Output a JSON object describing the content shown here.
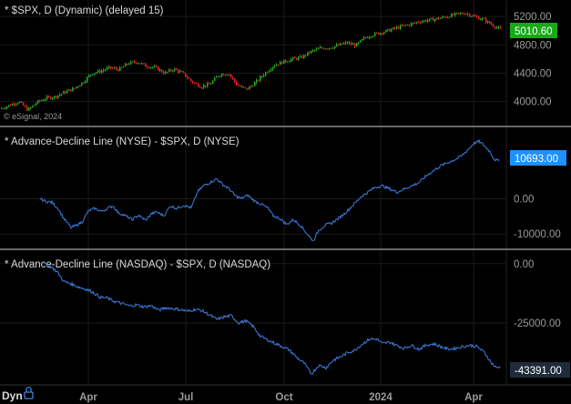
{
  "bottom_bar": {
    "mode_label": "Dyn",
    "lock_icon": "lock-icon"
  },
  "watermark": "© eSignal, 2024",
  "colors": {
    "background": "#000000",
    "divider": "#8a8a8a",
    "grid": "#1a1a1a",
    "candle_up": "#1fa81f",
    "candle_down": "#e02020",
    "line_blue": "#3d7fe0",
    "badge_green": "#18a818",
    "badge_blue": "#1e90ff",
    "badge_dark": "#1f2b3a"
  },
  "chart_data": [
    {
      "type": "candlestick",
      "title": "* $SPX, D (Dynamic) (delayed 15)",
      "ylim": [
        3700,
        5330
      ],
      "yticks": [
        "5200.00",
        "4800.00",
        "4400.00",
        "4000.00"
      ],
      "ytick_values": [
        5200,
        4800,
        4400,
        4000
      ],
      "last_value_label": "5010.60",
      "last_value": 5010.6,
      "anchors": [
        [
          0,
          3900
        ],
        [
          10,
          3950
        ],
        [
          20,
          4000
        ],
        [
          30,
          3880
        ],
        [
          40,
          3990
        ],
        [
          50,
          4050
        ],
        [
          60,
          4070
        ],
        [
          70,
          4130
        ],
        [
          80,
          4180
        ],
        [
          90,
          4270
        ],
        [
          100,
          4400
        ],
        [
          110,
          4430
        ],
        [
          120,
          4480
        ],
        [
          130,
          4450
        ],
        [
          140,
          4540
        ],
        [
          150,
          4560
        ],
        [
          160,
          4500
        ],
        [
          170,
          4480
        ],
        [
          180,
          4400
        ],
        [
          190,
          4460
        ],
        [
          200,
          4400
        ],
        [
          210,
          4280
        ],
        [
          220,
          4210
        ],
        [
          230,
          4250
        ],
        [
          240,
          4380
        ],
        [
          250,
          4400
        ],
        [
          260,
          4230
        ],
        [
          270,
          4170
        ],
        [
          280,
          4270
        ],
        [
          290,
          4400
        ],
        [
          300,
          4510
        ],
        [
          310,
          4560
        ],
        [
          320,
          4600
        ],
        [
          330,
          4620
        ],
        [
          340,
          4700
        ],
        [
          350,
          4750
        ],
        [
          360,
          4760
        ],
        [
          370,
          4790
        ],
        [
          380,
          4830
        ],
        [
          390,
          4790
        ],
        [
          400,
          4900
        ],
        [
          410,
          4950
        ],
        [
          420,
          4980
        ],
        [
          430,
          5020
        ],
        [
          440,
          5060
        ],
        [
          450,
          5090
        ],
        [
          460,
          5130
        ],
        [
          470,
          5150
        ],
        [
          480,
          5170
        ],
        [
          490,
          5200
        ],
        [
          500,
          5230
        ],
        [
          510,
          5250
        ],
        [
          520,
          5200
        ],
        [
          530,
          5160
        ],
        [
          540,
          5080
        ],
        [
          550,
          5010
        ]
      ]
    },
    {
      "type": "line",
      "title": "* Advance-Decline Line (NYSE) - $SPX, D (NYSE)",
      "ylim": [
        -13300,
        19000
      ],
      "yticks": [
        "0.00",
        "-10000.00"
      ],
      "ytick_values": [
        0,
        -10000
      ],
      "last_value_label": "10693.00",
      "last_value": 10693,
      "anchors": [
        [
          44,
          0
        ],
        [
          50,
          -700
        ],
        [
          57,
          -1000
        ],
        [
          64,
          -2800
        ],
        [
          70,
          -5500
        ],
        [
          78,
          -8200
        ],
        [
          84,
          -7500
        ],
        [
          90,
          -6600
        ],
        [
          97,
          -3500
        ],
        [
          104,
          -2700
        ],
        [
          112,
          -3600
        ],
        [
          118,
          -2700
        ],
        [
          124,
          -2000
        ],
        [
          130,
          -4000
        ],
        [
          137,
          -4700
        ],
        [
          145,
          -5900
        ],
        [
          152,
          -4700
        ],
        [
          160,
          -6100
        ],
        [
          166,
          -4300
        ],
        [
          172,
          -3700
        ],
        [
          180,
          -4800
        ],
        [
          187,
          -2000
        ],
        [
          194,
          -2700
        ],
        [
          202,
          -1800
        ],
        [
          210,
          -2600
        ],
        [
          217,
          2000
        ],
        [
          224,
          3800
        ],
        [
          232,
          4800
        ],
        [
          238,
          5700
        ],
        [
          245,
          4000
        ],
        [
          252,
          2800
        ],
        [
          258,
          900
        ],
        [
          265,
          100
        ],
        [
          272,
          1000
        ],
        [
          280,
          -700
        ],
        [
          287,
          -1500
        ],
        [
          294,
          -2600
        ],
        [
          300,
          -4800
        ],
        [
          308,
          -5700
        ],
        [
          315,
          -7300
        ],
        [
          322,
          -5900
        ],
        [
          330,
          -7500
        ],
        [
          337,
          -9900
        ],
        [
          344,
          -12000
        ],
        [
          350,
          -8900
        ],
        [
          357,
          -7500
        ],
        [
          364,
          -6900
        ],
        [
          372,
          -5500
        ],
        [
          380,
          -3800
        ],
        [
          388,
          -1700
        ],
        [
          396,
          500
        ],
        [
          404,
          1900
        ],
        [
          412,
          3300
        ],
        [
          420,
          3700
        ],
        [
          428,
          2800
        ],
        [
          436,
          1900
        ],
        [
          444,
          2800
        ],
        [
          452,
          3700
        ],
        [
          460,
          4600
        ],
        [
          468,
          6500
        ],
        [
          476,
          8000
        ],
        [
          484,
          9400
        ],
        [
          492,
          10300
        ],
        [
          500,
          11200
        ],
        [
          507,
          12200
        ],
        [
          514,
          14000
        ],
        [
          520,
          15700
        ],
        [
          526,
          16300
        ],
        [
          532,
          15100
        ],
        [
          538,
          13400
        ],
        [
          543,
          11200
        ],
        [
          548,
          10693
        ]
      ]
    },
    {
      "type": "line",
      "title": "* Advance-Decline Line (NASDAQ) - $SPX, D (NASDAQ)",
      "ylim": [
        -50000,
        3000
      ],
      "yticks": [
        "0.00",
        "-25000.00"
      ],
      "ytick_values": [
        0,
        -25000
      ],
      "last_value_label": "-43391.00",
      "last_value": -43391,
      "anchors": [
        [
          50,
          0
        ],
        [
          57,
          -1500
        ],
        [
          64,
          -4000
        ],
        [
          70,
          -7500
        ],
        [
          78,
          -8500
        ],
        [
          86,
          -9800
        ],
        [
          94,
          -10700
        ],
        [
          102,
          -12000
        ],
        [
          110,
          -14200
        ],
        [
          118,
          -14500
        ],
        [
          126,
          -16000
        ],
        [
          134,
          -16800
        ],
        [
          142,
          -17800
        ],
        [
          150,
          -17400
        ],
        [
          158,
          -18200
        ],
        [
          166,
          -17700
        ],
        [
          174,
          -19600
        ],
        [
          182,
          -18600
        ],
        [
          190,
          -18900
        ],
        [
          198,
          -19400
        ],
        [
          206,
          -20100
        ],
        [
          214,
          -19300
        ],
        [
          222,
          -19800
        ],
        [
          230,
          -21600
        ],
        [
          238,
          -23500
        ],
        [
          246,
          -22500
        ],
        [
          254,
          -21900
        ],
        [
          262,
          -25000
        ],
        [
          270,
          -24100
        ],
        [
          278,
          -26500
        ],
        [
          286,
          -30600
        ],
        [
          294,
          -32200
        ],
        [
          302,
          -33600
        ],
        [
          310,
          -35000
        ],
        [
          318,
          -36500
        ],
        [
          326,
          -39600
        ],
        [
          334,
          -42000
        ],
        [
          342,
          -46500
        ],
        [
          350,
          -42900
        ],
        [
          358,
          -43900
        ],
        [
          366,
          -40700
        ],
        [
          374,
          -39300
        ],
        [
          382,
          -37500
        ],
        [
          390,
          -36400
        ],
        [
          398,
          -33800
        ],
        [
          406,
          -31800
        ],
        [
          414,
          -31800
        ],
        [
          420,
          -33800
        ],
        [
          428,
          -33100
        ],
        [
          436,
          -34600
        ],
        [
          444,
          -35700
        ],
        [
          452,
          -34400
        ],
        [
          460,
          -36100
        ],
        [
          468,
          -34400
        ],
        [
          476,
          -33800
        ],
        [
          484,
          -35000
        ],
        [
          492,
          -36100
        ],
        [
          500,
          -35700
        ],
        [
          508,
          -35000
        ],
        [
          516,
          -34400
        ],
        [
          524,
          -35000
        ],
        [
          532,
          -37500
        ],
        [
          540,
          -42000
        ],
        [
          545,
          -44000
        ],
        [
          549,
          -43391
        ]
      ]
    }
  ],
  "x_axis": {
    "labels": [
      "Apr",
      "Jul",
      "Oct",
      "2024",
      "Apr"
    ],
    "positions": [
      97,
      204,
      312,
      418,
      520
    ]
  }
}
